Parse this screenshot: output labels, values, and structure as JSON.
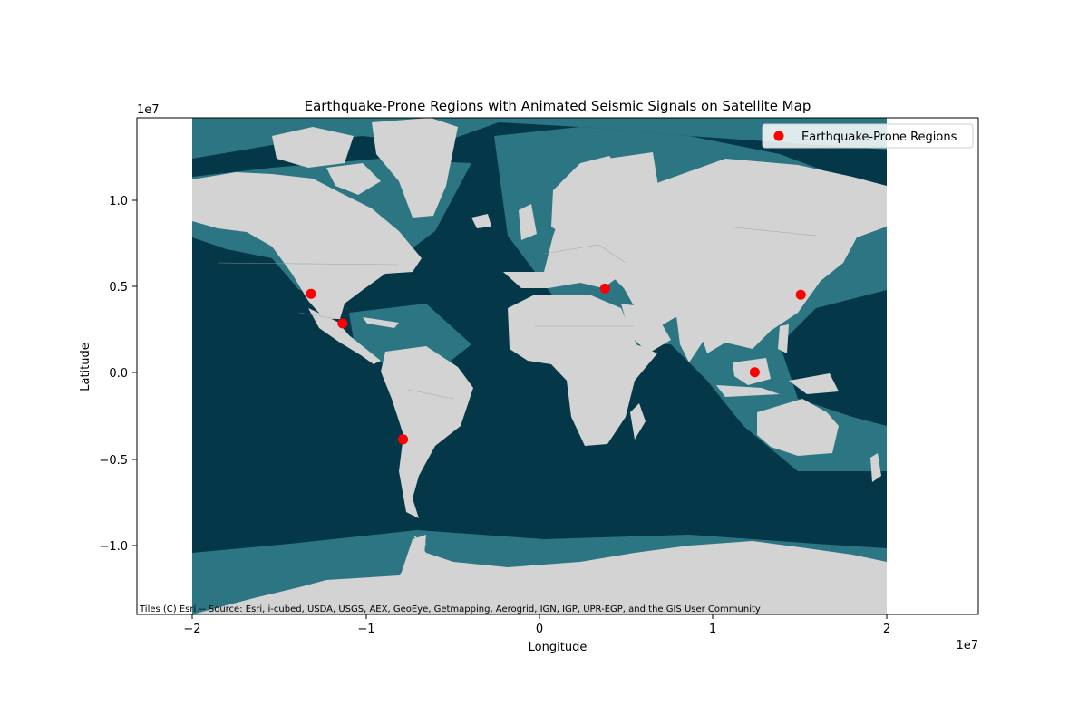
{
  "map": {
    "title": "Earthquake-Prone Regions with Animated Seismic Signals on Satellite Map",
    "xlabel": "Longitude",
    "ylabel": "Latitude",
    "x_offset": "1e7",
    "y_offset": "1e7",
    "x_ticks": [
      "−2",
      "−1",
      "0",
      "1",
      "2"
    ],
    "y_ticks": [
      "1.0",
      "0.5",
      "0.0",
      "−0.5",
      "−1.0"
    ],
    "legend_label": "Earthquake-Prone Regions",
    "attribution": "Tiles (C) Esri -- Source: Esri, i-cubed, USDA, USGS, AEX, GeoEye, Getmapping, Aerogrid, IGN, IGP, UPR-EGP, and the GIS User Community"
  },
  "colors": {
    "ocean_deep": "#043848",
    "ocean_shelf": "#2c7684",
    "land": "#d3d3d3",
    "marker": "#ff0000"
  },
  "chart_data": {
    "type": "scatter",
    "xlim": [
      -23500000,
      25800000
    ],
    "ylim": [
      -14000000,
      14500000
    ],
    "points": [
      {
        "x": -13300000,
        "y": 4400000
      },
      {
        "x": -11450000,
        "y": 2700000
      },
      {
        "x": -7900000,
        "y": -3950000
      },
      {
        "x": 3930000,
        "y": 4700000
      },
      {
        "x": 12700000,
        "y": -100000
      },
      {
        "x": 15400000,
        "y": 4350000
      }
    ]
  }
}
